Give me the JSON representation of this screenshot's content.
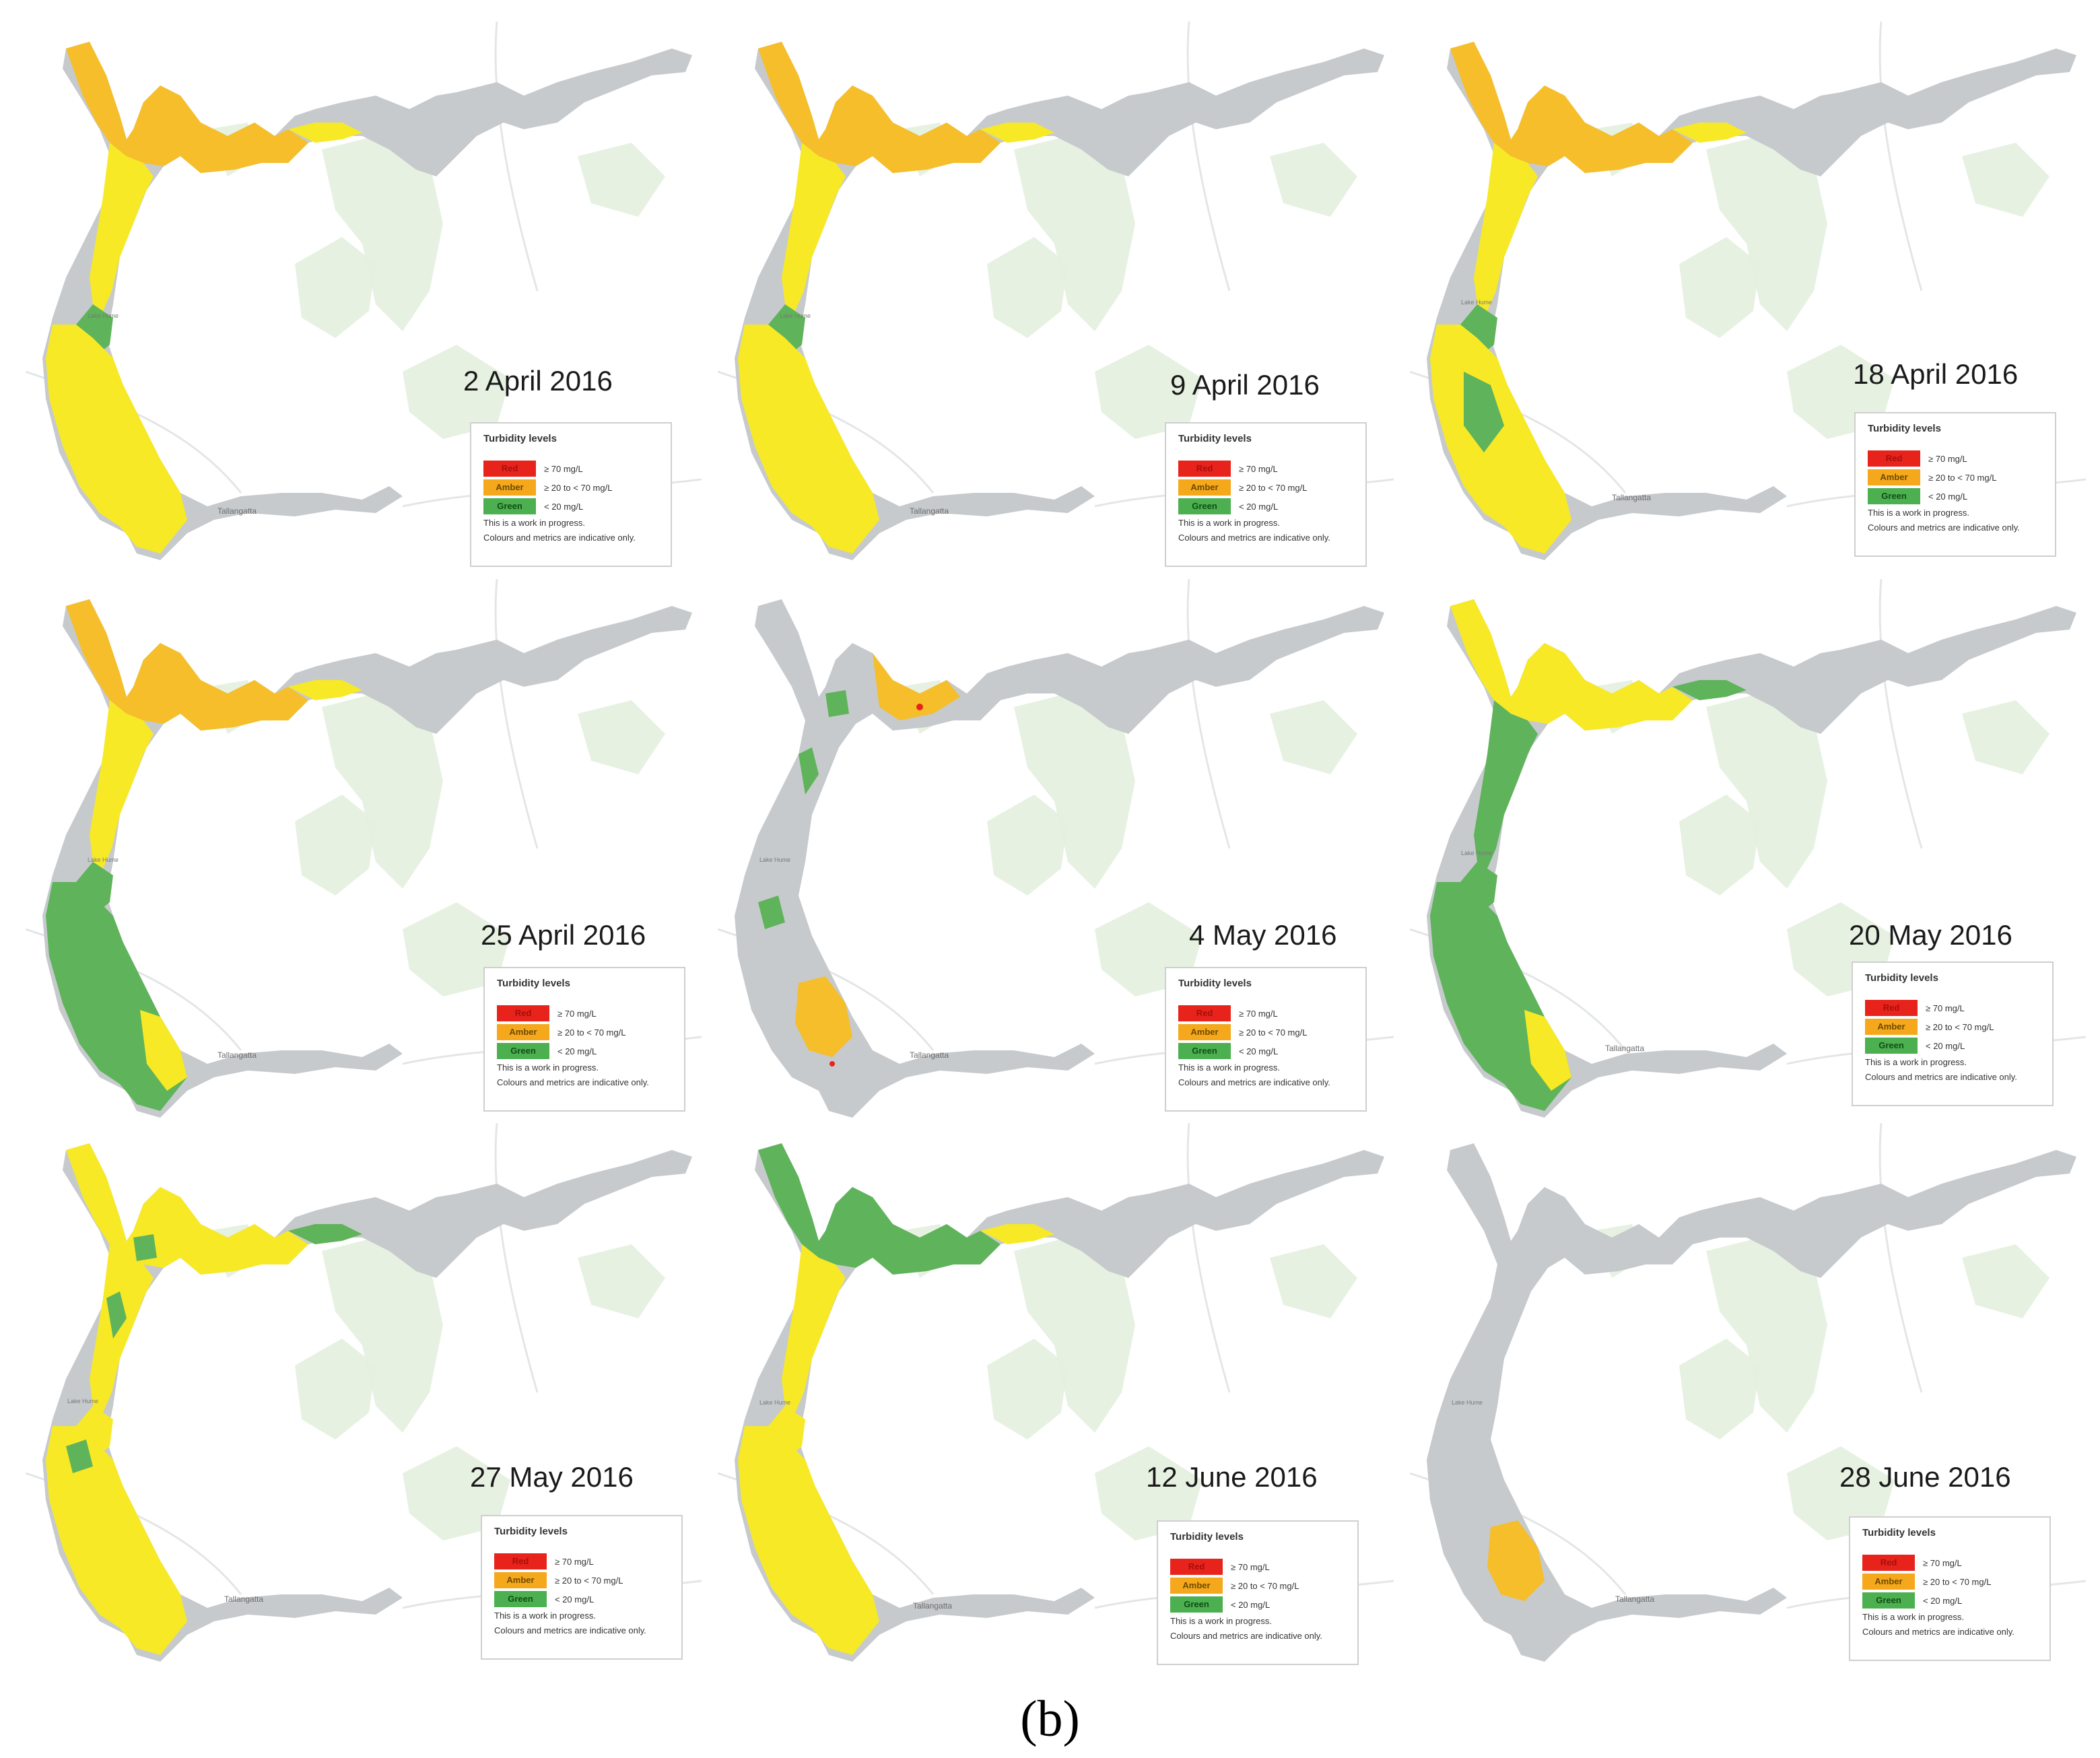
{
  "legend": {
    "title": "Turbidity levels",
    "items": [
      {
        "label": "Red",
        "range": "≥ 70 mg/L",
        "color": "#e8231c"
      },
      {
        "label": "Amber",
        "range": "≥ 20 to < 70 mg/L",
        "color": "#f5a81c"
      },
      {
        "label": "Green",
        "range": "< 20 mg/L",
        "color": "#4caf50"
      }
    ],
    "note1": "This is a work in progress.",
    "note2": "Colours and metrics are indicative only."
  },
  "labels": {
    "town": "Tallangatta",
    "lake": "Lake Hume"
  },
  "colors": {
    "reservoir": "#c6cacd",
    "forest": "#e4efdf",
    "yellow": "#f7e926",
    "amber": "#f5be2a",
    "green": "#5fb35a",
    "red": "#e8231c"
  },
  "panels": [
    {
      "date": "2 April 2016",
      "state": "early"
    },
    {
      "date": "9 April 2016",
      "state": "early"
    },
    {
      "date": "18 April 2016",
      "state": "early-green"
    },
    {
      "date": "25 April 2016",
      "state": "green-south"
    },
    {
      "date": "4 May 2016",
      "state": "patchy"
    },
    {
      "date": "20 May 2016",
      "state": "mostly-green"
    },
    {
      "date": "27 May 2016",
      "state": "mixed"
    },
    {
      "date": "12 June 2016",
      "state": "yellow-green-arm"
    },
    {
      "date": "28 June 2016",
      "state": "low"
    }
  ],
  "caption": "(b)"
}
